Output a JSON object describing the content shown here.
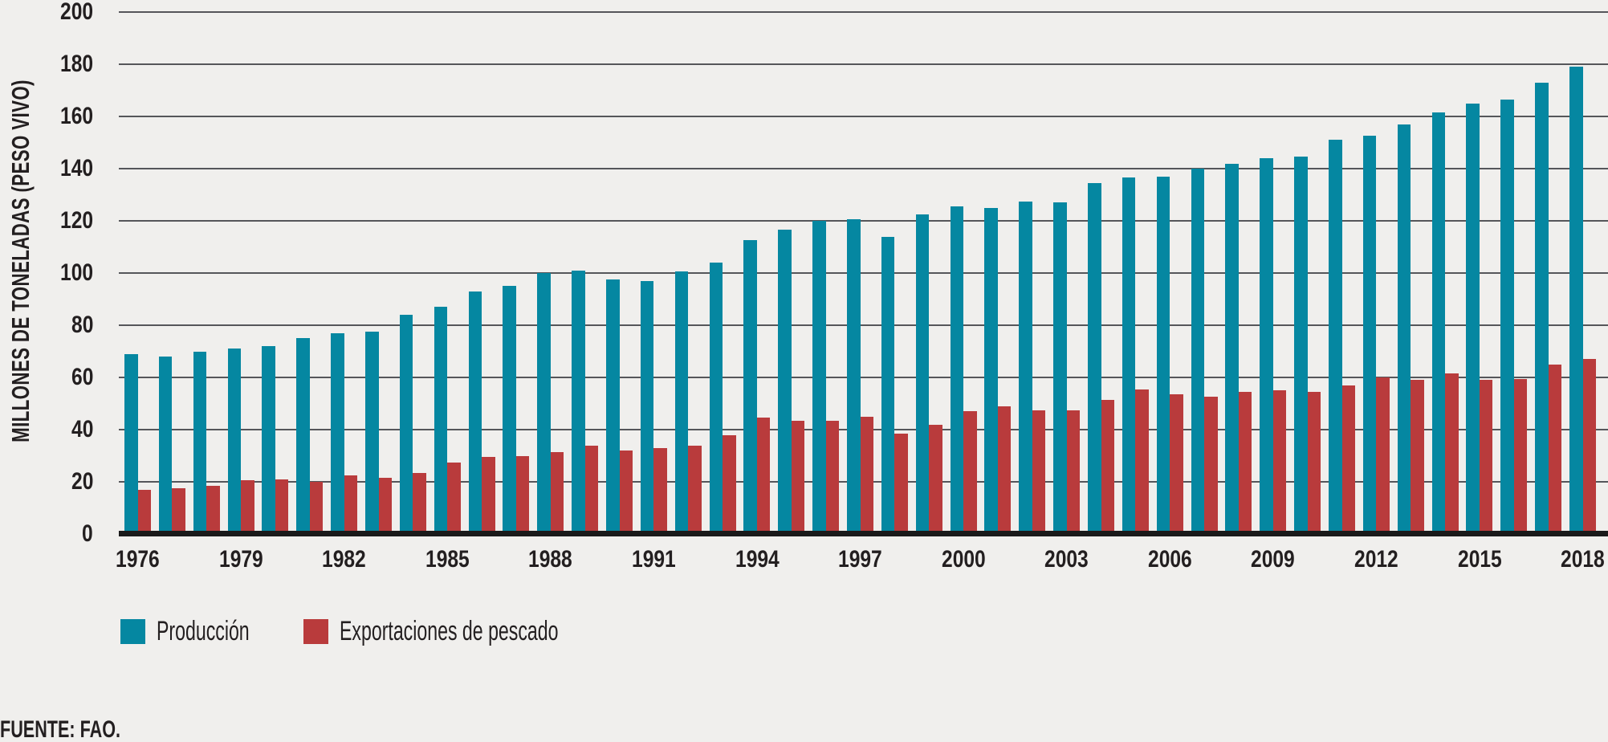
{
  "figure": {
    "source": "FUENTE: FAO.",
    "background": "#F0EFED"
  },
  "chart_data": {
    "type": "bar",
    "title": "",
    "xlabel": "",
    "ylabel": "MILLONES DE TONELADAS (PESO VIVO)",
    "ylim": [
      0,
      200
    ],
    "ytick_step": 20,
    "grid": true,
    "legend_position": "bottom",
    "x_tick_years": [
      1976,
      1979,
      1982,
      1985,
      1988,
      1991,
      1994,
      1997,
      2000,
      2003,
      2006,
      2009,
      2012,
      2015,
      2018
    ],
    "categories": [
      1976,
      1977,
      1978,
      1979,
      1980,
      1981,
      1982,
      1983,
      1984,
      1985,
      1986,
      1987,
      1988,
      1989,
      1990,
      1991,
      1992,
      1993,
      1994,
      1995,
      1996,
      1997,
      1998,
      1999,
      2000,
      2001,
      2002,
      2003,
      2004,
      2005,
      2006,
      2007,
      2008,
      2009,
      2010,
      2011,
      2012,
      2013,
      2014,
      2015,
      2016,
      2017,
      2018
    ],
    "series": [
      {
        "name": "Producción",
        "color": "#0587A1",
        "values": [
          69,
          68,
          70,
          71,
          72,
          75,
          77,
          77.5,
          84,
          87,
          93,
          95,
          100,
          101,
          97.5,
          97,
          100.5,
          104,
          112.5,
          116.5,
          120,
          120.5,
          114,
          122.5,
          125.5,
          125,
          127.5,
          127,
          134.5,
          136.5,
          137,
          140,
          142,
          144,
          144.5,
          151,
          152.5,
          157,
          161.5,
          165,
          166.5,
          173,
          179
        ]
      },
      {
        "name": "Exportaciones de pescado",
        "color": "#B93B3C",
        "values": [
          17,
          17.5,
          18.5,
          20.5,
          21,
          20,
          22.5,
          21.5,
          23.5,
          27.5,
          29.5,
          30,
          31.5,
          34,
          32,
          33,
          34,
          38,
          44.5,
          43.5,
          43.5,
          45,
          38.5,
          42,
          47,
          49,
          47.5,
          47.5,
          51.5,
          55.5,
          53.5,
          52.5,
          54.5,
          55,
          54.5,
          57,
          60,
          59,
          61.5,
          59,
          59.5,
          65,
          67
        ]
      }
    ],
    "style": {
      "gridline_color": "#55565A",
      "axis_line_color": "#1A1A1A",
      "text_color": "#231F20"
    }
  }
}
